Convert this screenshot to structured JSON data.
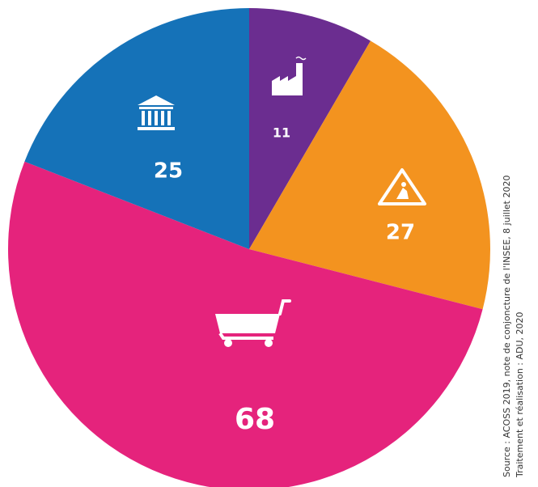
{
  "chart_data": {
    "type": "pie",
    "categories": [
      null,
      null,
      null,
      null
    ],
    "values": [
      11,
      27,
      68,
      25
    ],
    "colors": [
      "#6b2d90",
      "#f3931f",
      "#e5237c",
      "#1572b8"
    ],
    "notes": [
      "Source : ACOSS 2019, note de conjoncture de l'INSEE, 8 juillet 2020",
      "Traitement et réalisation : ADU, 2020"
    ]
  }
}
